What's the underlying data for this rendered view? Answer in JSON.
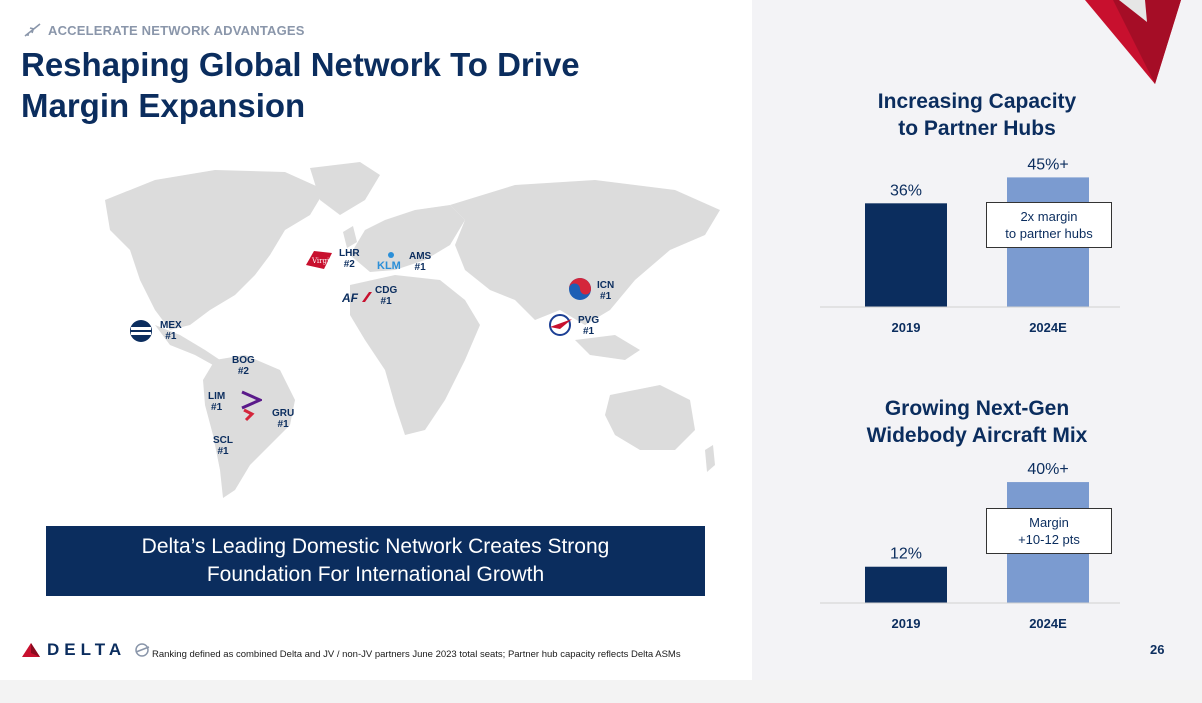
{
  "header": {
    "eyebrow": "ACCELERATE NETWORK ADVANTAGES",
    "title_line1": "Reshaping Global Network To Drive",
    "title_line2": "Margin Expansion"
  },
  "hubs": [
    {
      "code": "MEX",
      "rank": "#1"
    },
    {
      "code": "LHR",
      "rank": "#2"
    },
    {
      "code": "AMS",
      "rank": "#1"
    },
    {
      "code": "CDG",
      "rank": "#1"
    },
    {
      "code": "ICN",
      "rank": "#1"
    },
    {
      "code": "PVG",
      "rank": "#1"
    },
    {
      "code": "BOG",
      "rank": "#2"
    },
    {
      "code": "LIM",
      "rank": "#1"
    },
    {
      "code": "GRU",
      "rank": "#1"
    },
    {
      "code": "SCL",
      "rank": "#1"
    }
  ],
  "logos": {
    "klm": "KLM",
    "airfrance": "AF",
    "virgin": "Virgin"
  },
  "banner": {
    "line1": "Delta’s Leading Domestic Network Creates Strong",
    "line2": "Foundation For International Growth"
  },
  "footer": {
    "brand": "DELTA",
    "footnote": "Ranking defined as combined Delta and JV / non-JV partners June 2023 total seats; Partner hub capacity reflects Delta ASMs",
    "page_number": "26"
  },
  "colors": {
    "navy": "#0b2d5e",
    "light_blue": "#7b9bd0",
    "delta_red": "#c8102e"
  },
  "chart_data": [
    {
      "type": "bar",
      "title_line1": "Increasing Capacity",
      "title_line2": "to Partner Hubs",
      "categories": [
        "2019",
        "2024E"
      ],
      "values": [
        36,
        45
      ],
      "value_labels": [
        "36%",
        "45%+"
      ],
      "ylim": [
        0,
        50
      ],
      "callout_line1": "2x margin",
      "callout_line2": "to partner hubs"
    },
    {
      "type": "bar",
      "title_line1": "Growing Next-Gen",
      "title_line2": "Widebody Aircraft Mix",
      "categories": [
        "2019",
        "2024E"
      ],
      "values": [
        12,
        40
      ],
      "value_labels": [
        "12%",
        "40%+"
      ],
      "ylim": [
        0,
        43
      ],
      "callout_line1": "Margin",
      "callout_line2": "+10-12 pts"
    }
  ]
}
